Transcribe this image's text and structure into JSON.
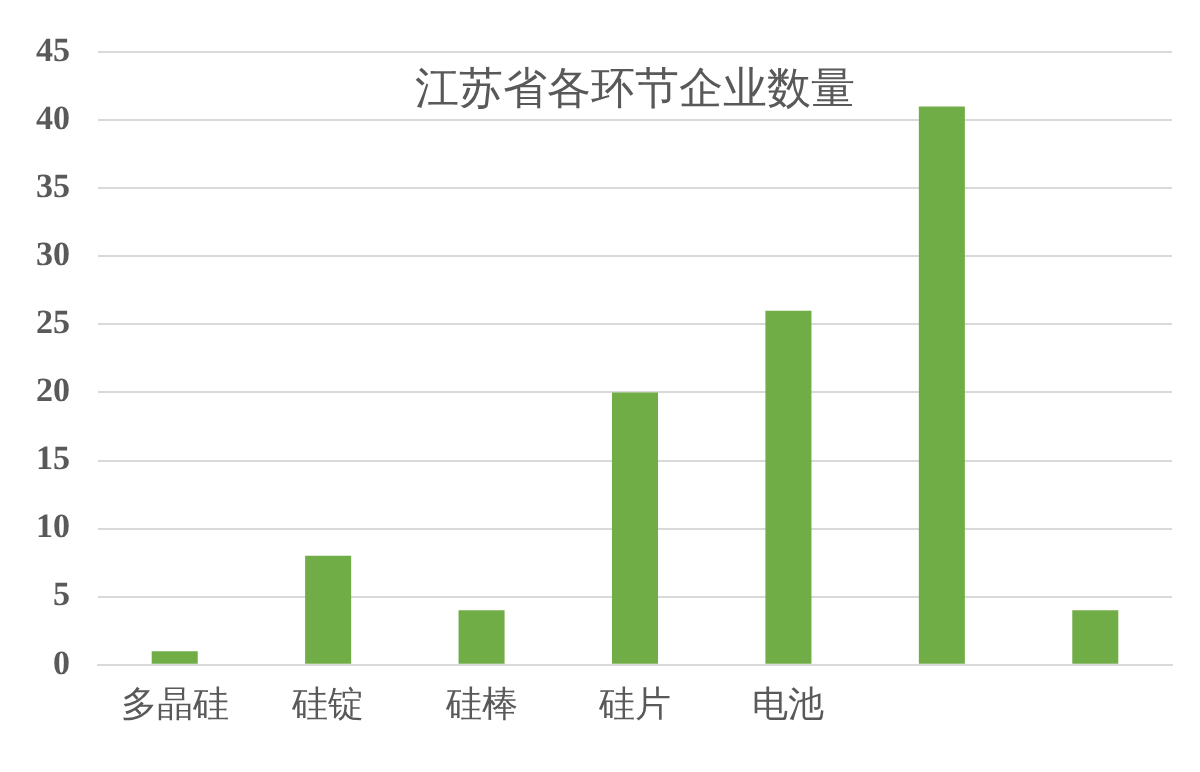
{
  "chart_data": {
    "type": "bar",
    "title": "江苏省各环节企业数量",
    "categories": [
      "多晶硅",
      "硅锭",
      "硅棒",
      "硅片",
      "电池",
      null,
      null
    ],
    "values": [
      1,
      8,
      4,
      20,
      26,
      41,
      4
    ],
    "color": "#70ad47",
    "ylim": [
      0,
      45
    ],
    "yticks": [
      0,
      5,
      10,
      15,
      20,
      25,
      30,
      35,
      40,
      45
    ],
    "grid": "y",
    "legend": false
  }
}
